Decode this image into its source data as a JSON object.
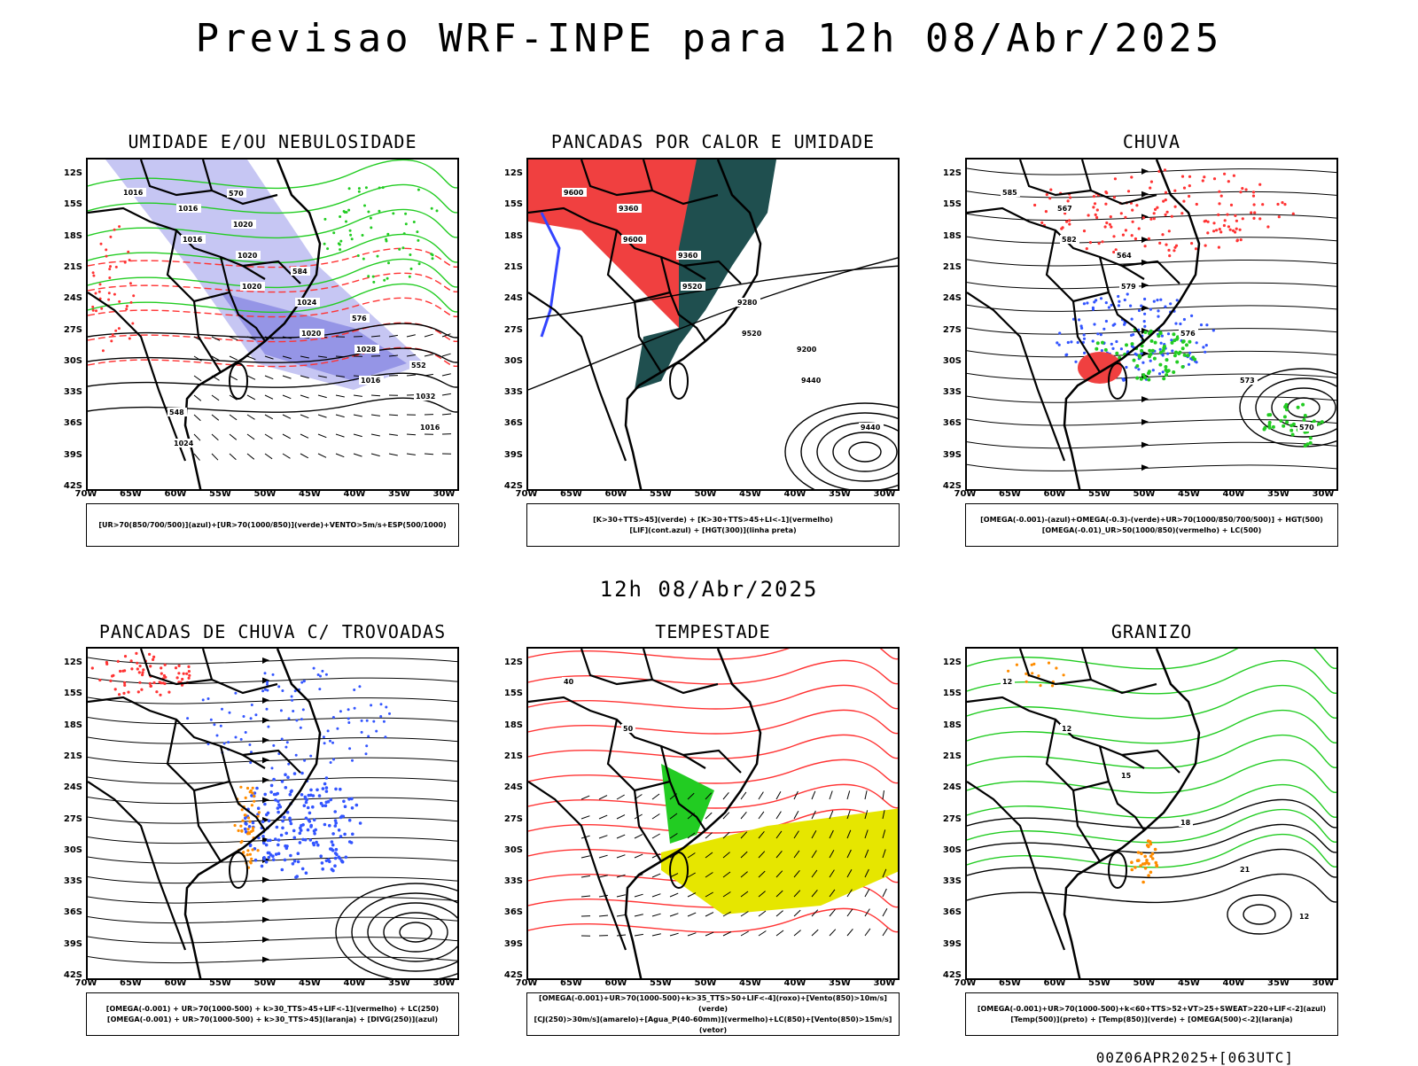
{
  "title": "Previsao WRF-INPE  para 12h 08/Abr/2025",
  "subtitle": "12h 08/Abr/2025",
  "footer": "00Z06APR2025+[063UTC]",
  "lat_labels": [
    "12S",
    "15S",
    "18S",
    "21S",
    "24S",
    "27S",
    "30S",
    "33S",
    "36S",
    "39S",
    "42S"
  ],
  "lon_labels": [
    "70W",
    "65W",
    "60W",
    "55W",
    "50W",
    "45W",
    "40W",
    "35W",
    "30W"
  ],
  "colors": {
    "blue": "#7b68ee",
    "green": "#22cc22",
    "red": "#ff3333",
    "orange": "#ff8c00",
    "yellow": "#e6e600",
    "darkteal": "#1f4f4f"
  },
  "panels": [
    {
      "title": "UMIDADE E/OU NEBULOSIDADE",
      "legend": [
        "[UR>70(850/700/500)](azul)+[UR>70(1000/850)](verde)+VENTO>5m/s+ESP(500/1000)"
      ],
      "contour_labels": [
        "1016",
        "1016",
        "1020",
        "1020",
        "1016",
        "1016",
        "1016",
        "1020",
        "1024",
        "1028",
        "1032",
        "1024",
        "1020",
        "584",
        "576",
        "552",
        "548",
        "570"
      ]
    },
    {
      "title": "PANCADAS POR CALOR E UMIDADE",
      "legend": [
        "[K>30+TTS>45](verde) + [K>30+TTS>45+LI<-1](vermelho)",
        "[LIF](cont.azul) + [HGT(300)](linha preta)"
      ],
      "contour_labels": [
        "9600",
        "9600",
        "9520",
        "9520",
        "9440",
        "9440",
        "9360",
        "9360",
        "9280",
        "9200"
      ]
    },
    {
      "title": "CHUVA",
      "legend": [
        "[OMEGA(-0.001)-(azul)+OMEGA(-0.3)-(verde)+UR>70(1000/850/700/500)] + HGT(500)",
        "[OMEGA(-0.01)_UR>50(1000/850)(vermelho) + LC(500)"
      ],
      "contour_labels": [
        "585",
        "582",
        "579",
        "576",
        "573",
        "570",
        "567",
        "564"
      ]
    },
    {
      "title": "PANCADAS DE CHUVA C/ TROVOADAS",
      "legend": [
        "[OMEGA(-0.001) + UR>70(1000-500) + k>30_TTS>45+LIF<-1](vermelho) + LC(250)",
        "[OMEGA(-0.001) + UR>70(1000-500) + k>30_TTS>45](laranja) + [DIVG(250)](azul)"
      ],
      "contour_labels": []
    },
    {
      "title": "TEMPESTADE",
      "legend": [
        "[OMEGA(-0.001)+UR>70(1000-500)+k>35_TTS>50+LIF<-4](roxo)+[Vento(850)>10m/s](verde)",
        "[CJ(250)>30m/s](amarelo)+[Agua_P(40-60mm)](vermelho)+LC(850)+[Vento(850)>15m/s](vetor)"
      ],
      "contour_labels": [
        "40",
        "50"
      ]
    },
    {
      "title": "GRANIZO",
      "legend": [
        "[OMEGA(-0.001)+UR>70(1000-500)+k<60+TTS>52+VT>25+SWEAT>220+LIF<-2](azul)",
        "[Temp(500)](preto) + [Temp(850)](verde) + [OMEGA(500)<-2](laranja)"
      ],
      "contour_labels": [
        "12",
        "12",
        "15",
        "18",
        "21",
        "12"
      ]
    }
  ]
}
